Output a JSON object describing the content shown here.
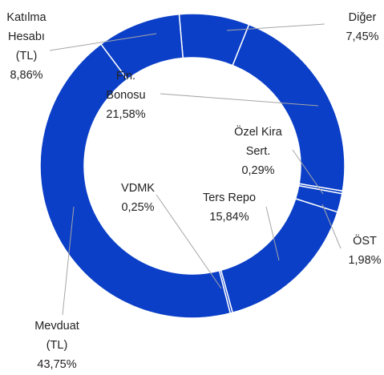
{
  "chart_data": {
    "type": "donut",
    "categories": [
      "Diğer",
      "Fin. Bonosu",
      "Özel Kira Sert.",
      "ÖST",
      "Ters Repo",
      "VDMK",
      "Mevduat (TL)",
      "Katılma Hesabı (TL)"
    ],
    "values": [
      7.45,
      21.58,
      0.29,
      1.98,
      15.84,
      0.25,
      43.75,
      8.86
    ],
    "value_labels": [
      "7,45%",
      "21,58%",
      "0,29%",
      "1,98%",
      "15,84%",
      "0,25%",
      "43,75%",
      "8,86%"
    ],
    "color": "#0b3fc7"
  }
}
